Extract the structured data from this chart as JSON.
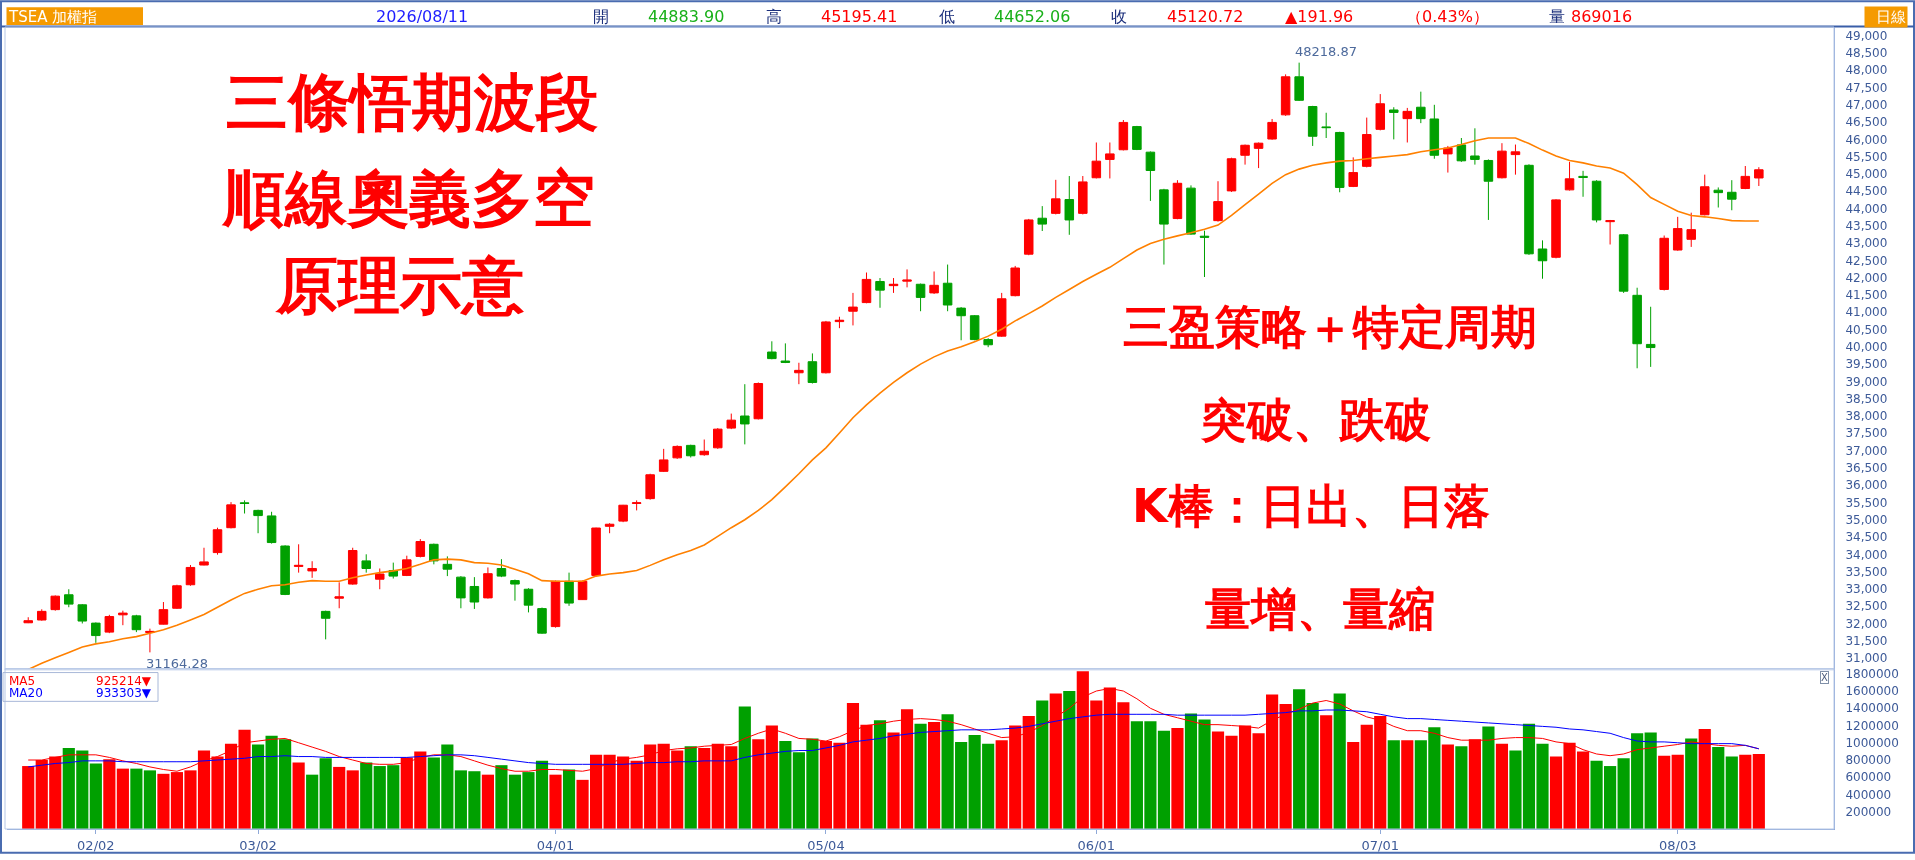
{
  "chart_data": [
    {
      "type": "candlestick",
      "title": "TSEA 加權指",
      "categories": [
        null,
        null,
        null,
        null,
        null,
        null,
        null,
        null,
        null,
        null,
        null,
        null,
        null,
        null,
        null,
        null,
        null,
        null,
        null,
        null,
        null,
        null,
        null,
        null,
        null,
        null,
        null,
        null,
        null,
        null,
        null,
        null,
        null,
        null,
        null,
        null,
        null,
        null,
        null,
        null,
        null,
        null,
        null,
        null,
        null,
        null,
        null,
        null,
        null,
        null,
        null,
        null,
        null,
        null,
        null,
        null,
        null,
        null,
        null,
        null,
        null,
        null,
        null,
        null,
        null,
        null,
        null,
        null,
        null,
        null,
        null,
        null,
        null,
        null,
        null,
        null,
        null,
        null,
        null,
        null,
        null,
        null,
        null,
        null,
        null,
        null,
        null,
        null,
        null,
        null,
        null,
        null,
        null,
        null,
        null,
        null,
        null,
        null,
        null,
        null,
        null,
        null,
        null,
        null,
        null,
        null,
        null,
        null,
        null,
        null,
        null,
        null,
        null,
        null,
        null,
        null,
        null,
        null,
        null,
        null,
        null,
        null,
        null,
        null,
        null,
        null,
        null,
        null,
        null
      ],
      "ohlc": [
        [
          32020,
          32180,
          32010,
          32080
        ],
        [
          32100,
          32410,
          32080,
          32350
        ],
        [
          32400,
          32810,
          32370,
          32790
        ],
        [
          32830,
          32990,
          32470,
          32560
        ],
        [
          32540,
          32560,
          32000,
          32070
        ],
        [
          32010,
          32030,
          31440,
          31650
        ],
        [
          31750,
          32250,
          31720,
          32200
        ],
        [
          32250,
          32370,
          31950,
          32300
        ],
        [
          32220,
          32250,
          31750,
          31820
        ],
        [
          31740,
          31850,
          31164.28,
          31770
        ],
        [
          31980,
          32620,
          31970,
          32400
        ],
        [
          32440,
          33120,
          32420,
          33090
        ],
        [
          33120,
          33690,
          33090,
          33620
        ],
        [
          33690,
          34190,
          33680,
          33780
        ],
        [
          34050,
          34770,
          33990,
          34710
        ],
        [
          34770,
          35510,
          34750,
          35430
        ],
        [
          35490,
          35560,
          35180,
          35470
        ],
        [
          35270,
          35290,
          34610,
          35120
        ],
        [
          35110,
          35230,
          34310,
          34340
        ],
        [
          34240,
          34260,
          32820,
          32840
        ],
        [
          33650,
          34290,
          33470,
          33680
        ],
        [
          33520,
          33800,
          33320,
          33590
        ],
        [
          32350,
          32370,
          31540,
          32150
        ],
        [
          32730,
          33190,
          32440,
          32770
        ],
        [
          33140,
          34190,
          33120,
          34110
        ],
        [
          33810,
          34000,
          33470,
          33590
        ],
        [
          33280,
          33590,
          32990,
          33430
        ],
        [
          33530,
          33760,
          33300,
          33370
        ],
        [
          33390,
          33960,
          33370,
          33840
        ],
        [
          33940,
          34440,
          33910,
          34370
        ],
        [
          34290,
          34310,
          33710,
          33810
        ],
        [
          33710,
          33940,
          33370,
          33570
        ],
        [
          33340,
          33370,
          32440,
          32740
        ],
        [
          33070,
          33340,
          32420,
          32620
        ],
        [
          32740,
          33620,
          32720,
          33440
        ],
        [
          33590,
          33860,
          33340,
          33370
        ],
        [
          33240,
          33270,
          32660,
          33140
        ],
        [
          32990,
          33020,
          32320,
          32530
        ],
        [
          32430,
          32460,
          31700,
          31720
        ],
        [
          31910,
          33240,
          31880,
          33220
        ],
        [
          33220,
          33470,
          32510,
          32590
        ],
        [
          32690,
          33240,
          32680,
          33220
        ],
        [
          33390,
          34770,
          33370,
          34760
        ],
        [
          34810,
          34900,
          34610,
          34870
        ],
        [
          34960,
          35430,
          34930,
          35420
        ],
        [
          35470,
          35560,
          35270,
          35490
        ],
        [
          35610,
          36330,
          35580,
          36300
        ],
        [
          36400,
          37050,
          36380,
          36730
        ],
        [
          36790,
          37150,
          36760,
          37120
        ],
        [
          37150,
          37170,
          36800,
          36850
        ],
        [
          36880,
          37320,
          36850,
          36980
        ],
        [
          37080,
          37650,
          37050,
          37620
        ],
        [
          37650,
          38070,
          37620,
          37880
        ],
        [
          38000,
          38920,
          37180,
          37770
        ],
        [
          37920,
          38970,
          37900,
          38940
        ],
        [
          39850,
          40160,
          39640,
          39660
        ],
        [
          39590,
          40100,
          39530,
          39550
        ],
        [
          39250,
          39540,
          38920,
          39320
        ],
        [
          39570,
          39810,
          38940,
          38970
        ],
        [
          39250,
          40750,
          39230,
          40720
        ],
        [
          40730,
          40870,
          40540,
          40770
        ],
        [
          41030,
          41560,
          40620,
          41150
        ],
        [
          41280,
          42150,
          41260,
          41950
        ],
        [
          41890,
          41990,
          41130,
          41640
        ],
        [
          41770,
          41990,
          41560,
          41810
        ],
        [
          41900,
          42240,
          41720,
          41930
        ],
        [
          41810,
          41830,
          41030,
          41430
        ],
        [
          41560,
          42180,
          41530,
          41780
        ],
        [
          41840,
          42380,
          41030,
          41210
        ],
        [
          41120,
          41150,
          40190,
          40900
        ],
        [
          40900,
          40920,
          40190,
          40210
        ],
        [
          40210,
          40250,
          39990,
          40060
        ],
        [
          40310,
          41560,
          40290,
          41390
        ],
        [
          41480,
          42340,
          41460,
          42280
        ],
        [
          42680,
          43700,
          42650,
          43670
        ],
        [
          43720,
          44070,
          43350,
          43550
        ],
        [
          43860,
          44830,
          43830,
          44280
        ],
        [
          44260,
          44940,
          43240,
          43670
        ],
        [
          43860,
          44940,
          43830,
          44770
        ],
        [
          44890,
          45910,
          44870,
          45370
        ],
        [
          45420,
          45910,
          44870,
          45580
        ],
        [
          45700,
          46560,
          45680,
          46490
        ],
        [
          46370,
          46390,
          45690,
          45710
        ],
        [
          45630,
          45650,
          44220,
          45100
        ],
        [
          44540,
          44570,
          42380,
          43550
        ],
        [
          43710,
          44820,
          43690,
          44730
        ],
        [
          44590,
          44670,
          43240,
          43260
        ],
        [
          43200,
          43360,
          42020,
          43170
        ],
        [
          43650,
          44790,
          43620,
          44200
        ],
        [
          44510,
          45470,
          44480,
          45440
        ],
        [
          45540,
          45850,
          45270,
          45830
        ],
        [
          45740,
          45910,
          45170,
          45890
        ],
        [
          46010,
          46590,
          45990,
          46490
        ],
        [
          46710,
          47880,
          46680,
          47810
        ],
        [
          47810,
          48218.87,
          47110,
          47130
        ],
        [
          46950,
          46970,
          45810,
          46090
        ],
        [
          46360,
          46770,
          46040,
          46340
        ],
        [
          46200,
          46220,
          44470,
          44610
        ],
        [
          44640,
          45480,
          44620,
          45040
        ],
        [
          45220,
          46630,
          45190,
          46140
        ],
        [
          46290,
          47310,
          46260,
          47030
        ],
        [
          46850,
          46930,
          46000,
          46780
        ],
        [
          46600,
          46910,
          45910,
          46810
        ],
        [
          46930,
          47380,
          46470,
          46600
        ],
        [
          46590,
          47000,
          45440,
          45540
        ],
        [
          45580,
          45810,
          45040,
          45750
        ],
        [
          45840,
          46040,
          45350,
          45380
        ],
        [
          45520,
          46320,
          45270,
          45420
        ],
        [
          45390,
          45420,
          43670,
          44790
        ],
        [
          44890,
          45890,
          44870,
          45660
        ],
        [
          45560,
          45850,
          44980,
          45640
        ],
        [
          45250,
          45280,
          42660,
          42690
        ],
        [
          42830,
          43080,
          41970,
          42490
        ],
        [
          42590,
          44270,
          42560,
          44250
        ],
        [
          44540,
          45350,
          44520,
          44860
        ],
        [
          44930,
          45090,
          44340,
          44900
        ],
        [
          44790,
          44820,
          43600,
          43670
        ],
        [
          43620,
          43670,
          42960,
          43650
        ],
        [
          43240,
          43260,
          41560,
          41610
        ],
        [
          41490,
          41710,
          39380,
          40090
        ],
        [
          40070,
          41160,
          39420,
          39980
        ],
        [
          41660,
          43220,
          41630,
          43140
        ],
        [
          42800,
          43760,
          42780,
          43420
        ],
        [
          43110,
          43880,
          42890,
          43390
        ],
        [
          43820,
          44980,
          43800,
          44630
        ],
        [
          44530,
          44610,
          44030,
          44460
        ],
        [
          44470,
          44820,
          43950,
          44270
        ],
        [
          44580,
          45230,
          44560,
          44930
        ],
        [
          44883.9,
          45195.41,
          44652.06,
          45120.72
        ]
      ],
      "colors": [
        "#ff0000",
        "#ff0000",
        "#ff0000",
        "#00a000",
        "#00a000",
        "#00a000",
        "#ff0000",
        "#ff0000",
        "#00a000",
        "#ff0000",
        "#ff0000",
        "#ff0000",
        "#ff0000",
        "#ff0000",
        "#ff0000",
        "#ff0000",
        "#00a000",
        "#00a000",
        "#00a000",
        "#00a000",
        "#ff0000",
        "#ff0000",
        "#00a000",
        "#ff0000",
        "#ff0000",
        "#00a000",
        "#ff0000",
        "#00a000",
        "#ff0000",
        "#ff0000",
        "#00a000",
        "#00a000",
        "#00a000",
        "#00a000",
        "#ff0000",
        "#00a000",
        "#00a000",
        "#00a000",
        "#00a000",
        "#ff0000",
        "#00a000",
        "#ff0000",
        "#ff0000",
        "#ff0000",
        "#ff0000",
        "#ff0000",
        "#ff0000",
        "#ff0000",
        "#ff0000",
        "#00a000",
        "#ff0000",
        "#ff0000",
        "#ff0000",
        "#00a000",
        "#ff0000",
        "#00a000",
        "#00a000",
        "#ff0000",
        "#00a000",
        "#ff0000",
        "#ff0000",
        "#ff0000",
        "#ff0000",
        "#00a000",
        "#ff0000",
        "#ff0000",
        "#00a000",
        "#ff0000",
        "#00a000",
        "#00a000",
        "#00a000",
        "#00a000",
        "#ff0000",
        "#ff0000",
        "#ff0000",
        "#00a000",
        "#ff0000",
        "#00a000",
        "#ff0000",
        "#ff0000",
        "#ff0000",
        "#ff0000",
        "#00a000",
        "#00a000",
        "#00a000",
        "#ff0000",
        "#00a000",
        "#00a000",
        "#ff0000",
        "#ff0000",
        "#ff0000",
        "#ff0000",
        "#ff0000",
        "#ff0000",
        "#00a000",
        "#00a000",
        "#00a000",
        "#00a000",
        "#ff0000",
        "#ff0000",
        "#ff0000",
        "#00a000",
        "#ff0000",
        "#00a000",
        "#00a000",
        "#ff0000",
        "#00a000",
        "#00a000",
        "#00a000",
        "#ff0000",
        "#ff0000",
        "#00a000",
        "#00a000",
        "#ff0000",
        "#ff0000",
        "#00a000",
        "#00a000",
        "#ff0000",
        "#00a000",
        "#00a000",
        "#00a000",
        "#ff0000",
        "#ff0000",
        "#ff0000",
        "#ff0000",
        "#00a000",
        "#00a000",
        "#ff0000",
        "#ff0000"
      ],
      "series": [
        {
          "type": "line",
          "color": "#ff8000",
          "values": [
            30670,
            30850,
            31010,
            31160,
            31320,
            31410,
            31470,
            31560,
            31620,
            31720,
            31820,
            31950,
            32100,
            32260,
            32470,
            32680,
            32870,
            32990,
            33090,
            33120,
            33190,
            33240,
            33220,
            33220,
            33320,
            33400,
            33470,
            33520,
            33590,
            33710,
            33840,
            33860,
            33840,
            33760,
            33740,
            33690,
            33570,
            33440,
            33240,
            33220,
            33220,
            33220,
            33370,
            33430,
            33470,
            33530,
            33680,
            33840,
            33990,
            34110,
            34270,
            34520,
            34770,
            35000,
            35270,
            35580,
            35950,
            36330,
            36730,
            37080,
            37510,
            37950,
            38320,
            38660,
            38970,
            39250,
            39500,
            39710,
            39880,
            40000,
            40150,
            40310,
            40510,
            40750,
            40960,
            41180,
            41430,
            41660,
            41890,
            42100,
            42300,
            42550,
            42800,
            42990,
            43110,
            43210,
            43300,
            43400,
            43520,
            43800,
            44110,
            44420,
            44730,
            44980,
            45140,
            45250,
            45320,
            45370,
            45390,
            45440,
            45480,
            45520,
            45560,
            45640,
            45700,
            45750,
            45850,
            45960,
            46040,
            46040,
            46040,
            45880,
            45690,
            45520,
            45390,
            45320,
            45230,
            45170,
            45020,
            44690,
            44320,
            44120,
            43920,
            43800,
            43760,
            43710,
            43650,
            43640,
            43640
          ]
        }
      ],
      "ylim": [
        30660,
        49250
      ],
      "yticks": [
        {
          "value": 31000,
          "label": "31,000"
        },
        {
          "value": 31500,
          "label": "31,500"
        },
        {
          "value": 32000,
          "label": "32,000"
        },
        {
          "value": 32500,
          "label": "32,500"
        },
        {
          "value": 33000,
          "label": "33,000"
        },
        {
          "value": 33500,
          "label": "33,500"
        },
        {
          "value": 34000,
          "label": "34,000"
        },
        {
          "value": 34500,
          "label": "34,500"
        },
        {
          "value": 35000,
          "label": "35,000"
        },
        {
          "value": 35500,
          "label": "35,500"
        },
        {
          "value": 36000,
          "label": "36,000"
        },
        {
          "value": 36500,
          "label": "36,500"
        },
        {
          "value": 37000,
          "label": "37,000"
        },
        {
          "value": 37500,
          "label": "37,500"
        },
        {
          "value": 38000,
          "label": "38,000"
        },
        {
          "value": 38500,
          "label": "38,500"
        },
        {
          "value": 39000,
          "label": "39,000"
        },
        {
          "value": 39500,
          "label": "39,500"
        },
        {
          "value": 40000,
          "label": "40,000"
        },
        {
          "value": 40500,
          "label": "40,500"
        },
        {
          "value": 41000,
          "label": "41,000"
        },
        {
          "value": 41500,
          "label": "41,500"
        },
        {
          "value": 42000,
          "label": "42,000"
        },
        {
          "value": 42500,
          "label": "42,500"
        },
        {
          "value": 43000,
          "label": "43,000"
        },
        {
          "value": 43500,
          "label": "43,500"
        },
        {
          "value": 44000,
          "label": "44,000"
        },
        {
          "value": 44500,
          "label": "44,500"
        },
        {
          "value": 45000,
          "label": "45,000"
        },
        {
          "value": 45500,
          "label": "45,500"
        },
        {
          "value": 46000,
          "label": "46,000"
        },
        {
          "value": 46500,
          "label": "46,500"
        },
        {
          "value": 47000,
          "label": "47,000"
        },
        {
          "value": 47500,
          "label": "47,500"
        },
        {
          "value": 48000,
          "label": "48,000"
        },
        {
          "value": 48500,
          "label": "48,500"
        },
        {
          "value": 49000,
          "label": "49,000"
        }
      ],
      "tick_labels": "y",
      "annotations": [
        "2026/08/11",
        "開",
        "44883.90",
        "高",
        "45195.41",
        "低",
        "44652.06",
        "收",
        "45120.72",
        "▲191.96",
        "（0.43%）",
        "量",
        "869016",
        "日線",
        "三條悟期波段",
        "順線奧義多空",
        "原理示意",
        "三盈策略＋特定周期",
        "突破、跌破",
        "K棒：日出、日落",
        "量增、量縮",
        "48218.87",
        "31164.28"
      ]
    },
    {
      "type": "bar",
      "categories": [
        null,
        null,
        null,
        null,
        null,
        "02/02",
        null,
        null,
        null,
        null,
        null,
        null,
        null,
        null,
        null,
        null,
        null,
        "03/02",
        null,
        null,
        null,
        null,
        null,
        null,
        null,
        null,
        null,
        null,
        null,
        null,
        null,
        null,
        null,
        null,
        null,
        null,
        null,
        null,
        null,
        "04/01",
        null,
        null,
        null,
        null,
        null,
        null,
        null,
        null,
        null,
        null,
        null,
        null,
        null,
        null,
        null,
        null,
        null,
        null,
        null,
        "05/04",
        null,
        null,
        null,
        null,
        null,
        null,
        null,
        null,
        null,
        null,
        null,
        null,
        null,
        null,
        null,
        null,
        null,
        null,
        null,
        "06/01",
        null,
        null,
        null,
        null,
        null,
        null,
        null,
        null,
        null,
        null,
        null,
        null,
        null,
        null,
        null,
        null,
        null,
        null,
        null,
        null,
        "07/01",
        null,
        null,
        null,
        null,
        null,
        null,
        null,
        null,
        null,
        null,
        null,
        null,
        null,
        null,
        null,
        null,
        null,
        null,
        null,
        null,
        null,
        "08/03",
        null,
        null,
        null,
        null,
        null,
        null
      ],
      "values": [
        730000,
        800000,
        840000,
        940000,
        910000,
        760000,
        810000,
        700000,
        700000,
        680000,
        640000,
        660000,
        680000,
        910000,
        840000,
        990000,
        1150000,
        980000,
        1080000,
        1040000,
        770000,
        630000,
        820000,
        720000,
        680000,
        770000,
        730000,
        740000,
        830000,
        900000,
        830000,
        980000,
        680000,
        670000,
        630000,
        740000,
        630000,
        660000,
        790000,
        630000,
        690000,
        570000,
        860000,
        860000,
        840000,
        790000,
        980000,
        990000,
        910000,
        960000,
        940000,
        990000,
        960000,
        1420000,
        1040000,
        1200000,
        1020000,
        890000,
        1050000,
        1020000,
        1000000,
        1460000,
        1210000,
        1260000,
        1120000,
        1390000,
        1220000,
        1240000,
        1330000,
        1010000,
        1090000,
        990000,
        1030000,
        1200000,
        1310000,
        1490000,
        1570000,
        1600000,
        1830000,
        1490000,
        1640000,
        1470000,
        1250000,
        1250000,
        1140000,
        1170000,
        1340000,
        1270000,
        1130000,
        1080000,
        1200000,
        1110000,
        1560000,
        1450000,
        1620000,
        1460000,
        1320000,
        1570000,
        1010000,
        1210000,
        1310000,
        1030000,
        1030000,
        1030000,
        1180000,
        980000,
        960000,
        1040000,
        1190000,
        990000,
        910000,
        1220000,
        990000,
        840000,
        1000000,
        900000,
        790000,
        730000,
        820000,
        1110000,
        1120000,
        850000,
        860000,
        1050000,
        1160000,
        950000,
        840000,
        860000,
        870000
      ],
      "colors": [
        "#ff0000",
        "#ff0000",
        "#ff0000",
        "#00a000",
        "#00a000",
        "#00a000",
        "#ff0000",
        "#ff0000",
        "#00a000",
        "#00a000",
        "#ff0000",
        "#ff0000",
        "#ff0000",
        "#ff0000",
        "#ff0000",
        "#ff0000",
        "#ff0000",
        "#00a000",
        "#00a000",
        "#00a000",
        "#ff0000",
        "#00a000",
        "#00a000",
        "#ff0000",
        "#ff0000",
        "#00a000",
        "#00a000",
        "#00a000",
        "#ff0000",
        "#ff0000",
        "#00a000",
        "#00a000",
        "#00a000",
        "#00a000",
        "#ff0000",
        "#00a000",
        "#00a000",
        "#00a000",
        "#00a000",
        "#ff0000",
        "#00a000",
        "#ff0000",
        "#ff0000",
        "#ff0000",
        "#ff0000",
        "#ff0000",
        "#ff0000",
        "#ff0000",
        "#ff0000",
        "#00a000",
        "#ff0000",
        "#ff0000",
        "#ff0000",
        "#00a000",
        "#ff0000",
        "#ff0000",
        "#00a000",
        "#00a000",
        "#00a000",
        "#ff0000",
        "#ff0000",
        "#ff0000",
        "#ff0000",
        "#00a000",
        "#ff0000",
        "#ff0000",
        "#00a000",
        "#ff0000",
        "#00a000",
        "#00a000",
        "#00a000",
        "#00a000",
        "#ff0000",
        "#ff0000",
        "#ff0000",
        "#00a000",
        "#ff0000",
        "#00a000",
        "#ff0000",
        "#ff0000",
        "#ff0000",
        "#ff0000",
        "#00a000",
        "#00a000",
        "#00a000",
        "#ff0000",
        "#00a000",
        "#00a000",
        "#ff0000",
        "#ff0000",
        "#ff0000",
        "#ff0000",
        "#ff0000",
        "#ff0000",
        "#00a000",
        "#00a000",
        "#ff0000",
        "#00a000",
        "#ff0000",
        "#ff0000",
        "#ff0000",
        "#00a000",
        "#ff0000",
        "#00a000",
        "#00a000",
        "#ff0000",
        "#00a000",
        "#ff0000",
        "#00a000",
        "#ff0000",
        "#00a000",
        "#00a000",
        "#00a000",
        "#ff0000",
        "#ff0000",
        "#ff0000",
        "#00a000",
        "#00a000",
        "#00a000",
        "#00a000",
        "#00a000",
        "#ff0000",
        "#ff0000",
        "#00a000",
        "#ff0000",
        "#00a000",
        "#00a000",
        "#ff0000",
        "#ff0000"
      ],
      "series": [
        {
          "type": "line",
          "name": "MA5",
          "color": "#ff0000",
          "values": [
            800000,
            800000,
            830000,
            860000,
            860000,
            860000,
            830000,
            790000,
            760000,
            720000,
            690000,
            670000,
            720000,
            790000,
            840000,
            910000,
            1000000,
            1020000,
            1040000,
            1050000,
            1000000,
            950000,
            900000,
            840000,
            800000,
            760000,
            750000,
            750000,
            770000,
            830000,
            860000,
            860000,
            840000,
            790000,
            740000,
            700000,
            670000,
            670000,
            690000,
            690000,
            680000,
            670000,
            700000,
            770000,
            810000,
            830000,
            860000,
            910000,
            930000,
            940000,
            960000,
            970000,
            980000,
            1050000,
            1110000,
            1160000,
            1110000,
            1050000,
            1040000,
            1020000,
            1070000,
            1140000,
            1200000,
            1220000,
            1250000,
            1270000,
            1280000,
            1270000,
            1250000,
            1210000,
            1160000,
            1110000,
            1060000,
            1070000,
            1120000,
            1200000,
            1300000,
            1400000,
            1530000,
            1600000,
            1630000,
            1600000,
            1510000,
            1400000,
            1330000,
            1290000,
            1250000,
            1210000,
            1210000,
            1200000,
            1190000,
            1170000,
            1260000,
            1330000,
            1390000,
            1460000,
            1490000,
            1450000,
            1370000,
            1300000,
            1260000,
            1190000,
            1140000,
            1140000,
            1110000,
            1060000,
            1030000,
            1030000,
            1030000,
            1050000,
            1060000,
            1060000,
            1050000,
            1010000,
            990000,
            920000,
            870000,
            850000,
            870000,
            920000,
            940000,
            960000,
            980000,
            1010000,
            990000,
            970000,
            960000,
            970000,
            930000
          ]
        },
        {
          "type": "line",
          "name": "MA20",
          "color": "#0000ff",
          "values": [
            720000,
            740000,
            760000,
            770000,
            790000,
            790000,
            790000,
            780000,
            780000,
            780000,
            780000,
            780000,
            780000,
            790000,
            800000,
            810000,
            820000,
            840000,
            840000,
            850000,
            840000,
            840000,
            830000,
            830000,
            830000,
            830000,
            830000,
            830000,
            830000,
            840000,
            850000,
            860000,
            860000,
            850000,
            830000,
            810000,
            790000,
            770000,
            760000,
            750000,
            750000,
            750000,
            750000,
            750000,
            750000,
            760000,
            770000,
            770000,
            780000,
            780000,
            790000,
            790000,
            790000,
            830000,
            860000,
            880000,
            900000,
            910000,
            910000,
            940000,
            970000,
            1010000,
            1030000,
            1050000,
            1080000,
            1100000,
            1120000,
            1130000,
            1140000,
            1150000,
            1150000,
            1150000,
            1160000,
            1170000,
            1190000,
            1220000,
            1250000,
            1280000,
            1300000,
            1320000,
            1330000,
            1330000,
            1330000,
            1330000,
            1330000,
            1320000,
            1320000,
            1320000,
            1320000,
            1320000,
            1320000,
            1330000,
            1340000,
            1350000,
            1370000,
            1370000,
            1380000,
            1380000,
            1370000,
            1360000,
            1330000,
            1300000,
            1280000,
            1280000,
            1270000,
            1260000,
            1250000,
            1240000,
            1230000,
            1220000,
            1210000,
            1200000,
            1190000,
            1180000,
            1160000,
            1150000,
            1130000,
            1110000,
            1060000,
            1020000,
            1010000,
            1010000,
            1000000,
            990000,
            990000,
            990000,
            990000,
            970000,
            930000
          ]
        }
      ],
      "ylim": [
        0,
        1860000
      ],
      "yticks": [
        200000,
        400000,
        600000,
        800000,
        1000000,
        1200000,
        1400000,
        1600000,
        1800000
      ],
      "legend": "top left",
      "annotations": [
        "925214▼",
        "933303▼",
        "X"
      ]
    }
  ]
}
